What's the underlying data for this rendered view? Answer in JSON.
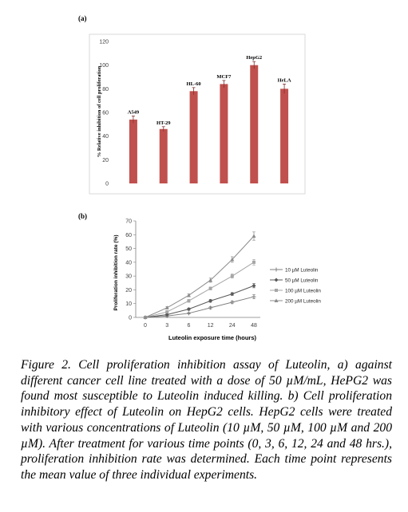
{
  "panel_a_label": "(a)",
  "panel_b_label": "(b)",
  "caption": {
    "figure_label": "Figure 2.",
    "text": " Cell proliferation inhibition assay of Luteolin, a) against different cancer cell line treated with a dose of 50 µM/mL, HePG2 was found most susceptible to Luteolin induced killing. b) Cell proliferation inhibitory effect of Luteolin on HepG2 cells. HepG2 cells were treated with various concentrations of Luteolin (10 µM, 50 µM, 100 µM and 200 µM). After treatment for various time points (0, 3, 6, 12, 24 and 48 hrs.), proliferation inhibition rate was determined. Each time point represents the mean value of three individual experiments."
  },
  "chart_data": [
    {
      "type": "bar",
      "categories": [
        "A549",
        "HT-29",
        "HL-60",
        "MCF7",
        "HepG2",
        "HeLA"
      ],
      "values": [
        54,
        46,
        78,
        84,
        100,
        80
      ],
      "errors": [
        3,
        2,
        3,
        3,
        3,
        4
      ],
      "ylabel": "% Relative inhibition of cell proliferation",
      "ylim": [
        0,
        120
      ],
      "yticks": [
        0,
        20,
        40,
        60,
        80,
        100,
        120
      ],
      "bar_color": "#c0504d",
      "grid": false
    },
    {
      "type": "line",
      "x": [
        "0",
        "3",
        "6",
        "12",
        "24",
        "48"
      ],
      "series": [
        {
          "name": "10 µM Luteolin",
          "values": [
            0,
            1,
            3,
            7,
            11,
            15
          ],
          "errors": [
            0.5,
            0.5,
            0.5,
            0.8,
            1,
            1.5
          ],
          "color": "#7f7f7f",
          "marker": "plus"
        },
        {
          "name": "50 µM Luteolin",
          "values": [
            0,
            2,
            6,
            12,
            17,
            23
          ],
          "errors": [
            0.5,
            0.5,
            0.8,
            1,
            1,
            1.5
          ],
          "color": "#595959",
          "marker": "diamond"
        },
        {
          "name": "100 µM Luteolin",
          "values": [
            0,
            4,
            12,
            21,
            30,
            40
          ],
          "errors": [
            0.5,
            0.8,
            1,
            1,
            1.5,
            2
          ],
          "color": "#a6a6a6",
          "marker": "square"
        },
        {
          "name": "200 µM Luteolin",
          "values": [
            0,
            7,
            16,
            27,
            42,
            59
          ],
          "errors": [
            0.5,
            0.8,
            1,
            1.5,
            2,
            3
          ],
          "color": "#8c8c8c",
          "marker": "triangle"
        }
      ],
      "xlabel": "Luteolin exposure time (hours)",
      "ylabel": "Proliferation inhibition rate (%)",
      "ylim": [
        0,
        70
      ],
      "yticks": [
        0,
        10,
        20,
        30,
        40,
        50,
        60,
        70
      ],
      "legend": "right",
      "grid": false
    }
  ]
}
